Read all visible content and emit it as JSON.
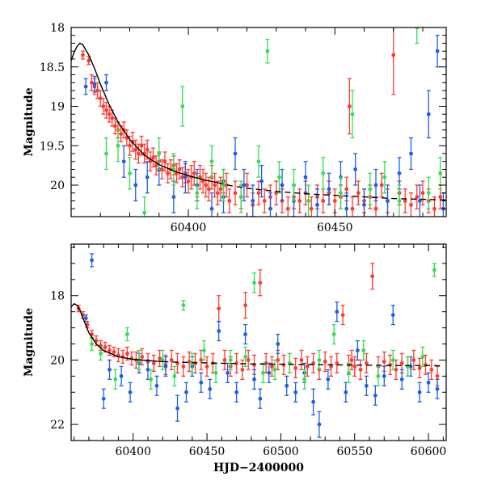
{
  "chart_data": [
    {
      "type": "scatter",
      "title": "",
      "xlabel": "",
      "ylabel": "Magnitude",
      "xlim": [
        60360,
        60488
      ],
      "ylim": [
        20.4,
        18.0
      ],
      "y_inverted": true,
      "xticks": [
        60400,
        60450
      ],
      "yticks": [
        18,
        18.5,
        19,
        19.5,
        20
      ],
      "ytick_labels": [
        "18",
        "18.5",
        "19",
        "19.5",
        "20"
      ],
      "grid": false,
      "model_curve": {
        "x": [
          60360,
          60361,
          60362,
          60363,
          60364,
          60366,
          60368,
          60370,
          60373,
          60376,
          60380,
          60385,
          60390,
          60395,
          60400,
          60405,
          60410,
          60415,
          60420,
          60430,
          60440,
          60450,
          60460,
          60470,
          60480,
          60488
        ],
        "y": [
          18.42,
          18.32,
          18.24,
          18.2,
          18.22,
          18.35,
          18.52,
          18.72,
          18.98,
          19.2,
          19.42,
          19.62,
          19.74,
          19.82,
          19.88,
          19.93,
          19.97,
          20.01,
          20.04,
          20.08,
          20.11,
          20.13,
          20.15,
          20.17,
          20.18,
          20.19
        ],
        "dashed_from_x": 60410
      },
      "series": [
        {
          "color": "#ff3b2f",
          "x": [
            60364,
            60366,
            60367,
            60368,
            60369,
            60370,
            60371,
            60372,
            60373,
            60374,
            60375,
            60376,
            60377,
            60378,
            60379,
            60380,
            60381,
            60382,
            60383,
            60384,
            60385,
            60386,
            60387,
            60388,
            60389,
            60390,
            60391,
            60392,
            60393,
            60394,
            60395,
            60396,
            60397,
            60398,
            60399,
            60400,
            60401,
            60402,
            60403,
            60404,
            60405,
            60406,
            60407,
            60408,
            60409,
            60410,
            60411,
            60412,
            60413,
            60414,
            60416,
            60418,
            60420,
            60422,
            60424,
            60426,
            60428,
            60430,
            60432,
            60434,
            60436,
            60438,
            60440,
            60442,
            60444,
            60446,
            60448,
            60450,
            60452,
            60454,
            60455,
            60456,
            60458,
            60460,
            60462,
            60464,
            60466,
            60468,
            60470,
            60472,
            60474,
            60476,
            60478,
            60480,
            60482,
            60484,
            60486
          ],
          "y": [
            18.35,
            18.42,
            18.7,
            18.75,
            18.8,
            18.9,
            19.0,
            19.05,
            19.1,
            19.15,
            19.25,
            19.3,
            19.35,
            19.3,
            19.4,
            19.5,
            19.45,
            19.55,
            19.6,
            19.5,
            19.6,
            19.55,
            19.7,
            19.65,
            19.75,
            19.7,
            19.8,
            19.7,
            19.85,
            19.8,
            19.75,
            19.85,
            19.8,
            19.9,
            19.85,
            19.95,
            19.9,
            19.85,
            20.0,
            19.9,
            19.95,
            20.0,
            20.05,
            19.9,
            20.0,
            20.1,
            20.05,
            19.95,
            20.0,
            20.2,
            20.1,
            20.15,
            20.0,
            20.25,
            20.1,
            20.2,
            20.15,
            20.1,
            20.2,
            20.3,
            20.15,
            20.2,
            20.1,
            20.3,
            20.15,
            20.2,
            20.1,
            20.2,
            20.15,
            20.05,
            19.0,
            20.3,
            20.1,
            20.2,
            20.15,
            20.3,
            20.0,
            20.2,
            18.35,
            20.1,
            20.2,
            20.25,
            20.15,
            20.1,
            20.2,
            20.3,
            20.15
          ],
          "err": [
            0.05,
            0.05,
            0.1,
            0.1,
            0.1,
            0.1,
            0.1,
            0.1,
            0.1,
            0.1,
            0.1,
            0.1,
            0.1,
            0.1,
            0.1,
            0.12,
            0.12,
            0.12,
            0.12,
            0.12,
            0.12,
            0.12,
            0.12,
            0.12,
            0.12,
            0.12,
            0.12,
            0.12,
            0.12,
            0.12,
            0.12,
            0.12,
            0.12,
            0.12,
            0.12,
            0.15,
            0.15,
            0.15,
            0.15,
            0.15,
            0.15,
            0.15,
            0.15,
            0.15,
            0.15,
            0.15,
            0.15,
            0.15,
            0.15,
            0.15,
            0.15,
            0.15,
            0.15,
            0.15,
            0.15,
            0.15,
            0.15,
            0.15,
            0.15,
            0.15,
            0.15,
            0.15,
            0.15,
            0.15,
            0.15,
            0.15,
            0.15,
            0.15,
            0.15,
            0.15,
            0.35,
            0.15,
            0.15,
            0.15,
            0.15,
            0.15,
            0.15,
            0.15,
            0.5,
            0.15,
            0.15,
            0.15,
            0.15,
            0.15,
            0.15,
            0.15,
            0.15
          ]
        },
        {
          "color": "#1f5fe0",
          "x": [
            60365,
            60368,
            60372,
            60378,
            60382,
            60386,
            60390,
            60395,
            60399,
            60403,
            60408,
            60412,
            60416,
            60419,
            60422,
            60425,
            60428,
            60432,
            60436,
            60440,
            60444,
            60448,
            60452,
            60454,
            60457,
            60460,
            60464,
            60468,
            60472,
            60476,
            60479,
            60482,
            60485,
            60487
          ],
          "y": [
            18.75,
            18.72,
            18.7,
            19.7,
            20.0,
            19.9,
            19.8,
            20.15,
            19.9,
            20.0,
            20.3,
            20.15,
            19.6,
            20.0,
            20.2,
            19.95,
            20.3,
            20.0,
            20.2,
            19.9,
            20.25,
            20.05,
            19.9,
            20.3,
            19.8,
            20.25,
            20.0,
            20.2,
            19.85,
            19.6,
            20.2,
            19.1,
            18.3,
            20.3
          ],
          "err": [
            0.1,
            0.1,
            0.1,
            0.2,
            0.2,
            0.2,
            0.2,
            0.2,
            0.2,
            0.2,
            0.2,
            0.2,
            0.2,
            0.2,
            0.2,
            0.2,
            0.2,
            0.2,
            0.2,
            0.2,
            0.2,
            0.2,
            0.2,
            0.2,
            0.2,
            0.2,
            0.2,
            0.2,
            0.2,
            0.2,
            0.2,
            0.3,
            0.2,
            0.2
          ]
        },
        {
          "color": "#33dd55",
          "x": [
            60372,
            60376,
            60380,
            60385,
            60390,
            60395,
            60398,
            60403,
            60408,
            60412,
            60418,
            60424,
            60427,
            60431,
            60436,
            60441,
            60446,
            60452,
            60456,
            60462,
            60467,
            60472,
            60478,
            60482,
            60486
          ],
          "y": [
            19.6,
            19.5,
            19.85,
            20.35,
            19.6,
            19.8,
            19.0,
            20.1,
            19.7,
            20.0,
            20.15,
            19.7,
            18.3,
            19.9,
            20.0,
            20.2,
            19.85,
            20.1,
            19.1,
            20.05,
            19.9,
            20.2,
            18.0,
            20.1,
            19.85
          ],
          "err": [
            0.2,
            0.2,
            0.2,
            0.2,
            0.2,
            0.2,
            0.25,
            0.2,
            0.2,
            0.2,
            0.2,
            0.2,
            0.15,
            0.2,
            0.2,
            0.2,
            0.2,
            0.2,
            0.3,
            0.2,
            0.2,
            0.2,
            0.2,
            0.2,
            0.2
          ]
        }
      ]
    },
    {
      "type": "scatter",
      "title": "",
      "xlabel": "HJD−2400000",
      "ylabel": "Magnitude",
      "xlim": [
        60358,
        60612
      ],
      "ylim": [
        22.5,
        16.4
      ],
      "y_inverted": true,
      "xticks": [
        60400,
        60450,
        60500,
        60550,
        60600
      ],
      "yticks": [
        18,
        20,
        22
      ],
      "ytick_labels": [
        "18",
        "20",
        "22"
      ],
      "grid": false,
      "model_curve": {
        "x": [
          60358,
          60360,
          60362,
          60364,
          60366,
          60370,
          60375,
          60380,
          60390,
          60400,
          60420,
          60440,
          60460,
          60480,
          60500,
          60520,
          60540,
          60560,
          60580,
          60600,
          60610
        ],
        "y": [
          18.35,
          18.25,
          18.3,
          18.45,
          18.7,
          19.15,
          19.5,
          19.7,
          19.9,
          19.98,
          20.05,
          20.08,
          20.1,
          20.12,
          20.13,
          20.14,
          20.15,
          20.16,
          20.17,
          20.17,
          20.18
        ],
        "dashed_from_x": 60420
      },
      "series": [
        {
          "color": "#ff3b2f",
          "x": [
            60363,
            60366,
            60369,
            60372,
            60375,
            60378,
            60381,
            60384,
            60387,
            60390,
            60393,
            60396,
            60399,
            60402,
            60406,
            60410,
            60414,
            60418,
            60422,
            60426,
            60430,
            60434,
            60438,
            60442,
            60446,
            60450,
            60454,
            60458,
            60462,
            60466,
            60470,
            60474,
            60476,
            60478,
            60482,
            60486,
            60490,
            60494,
            60498,
            60502,
            60506,
            60510,
            60514,
            60518,
            60522,
            60526,
            60530,
            60534,
            60538,
            60542,
            60546,
            60548,
            60550,
            60554,
            60558,
            60562,
            60566,
            60570,
            60574,
            60578,
            60582,
            60586,
            60590,
            60594,
            60598,
            60602,
            60606
          ],
          "y": [
            18.4,
            18.6,
            18.9,
            19.2,
            19.4,
            19.55,
            19.6,
            19.7,
            19.75,
            19.85,
            19.9,
            19.8,
            19.95,
            20.0,
            19.9,
            20.05,
            20.1,
            19.95,
            20.15,
            20.0,
            20.1,
            20.2,
            20.05,
            20.1,
            20.0,
            20.2,
            20.1,
            18.4,
            20.0,
            20.2,
            20.1,
            20.3,
            18.3,
            20.0,
            20.15,
            17.6,
            20.1,
            20.2,
            20.0,
            20.15,
            20.1,
            20.25,
            20.0,
            20.2,
            20.1,
            20.3,
            20.05,
            20.2,
            20.1,
            18.6,
            20.15,
            20.0,
            20.2,
            20.3,
            20.1,
            17.4,
            20.2,
            20.05,
            20.15,
            20.3,
            20.1,
            20.2,
            20.0,
            20.25,
            20.15,
            20.3,
            20.5
          ],
          "err": [
            0.1,
            0.1,
            0.1,
            0.12,
            0.15,
            0.15,
            0.15,
            0.15,
            0.15,
            0.2,
            0.2,
            0.2,
            0.2,
            0.25,
            0.25,
            0.25,
            0.25,
            0.25,
            0.3,
            0.3,
            0.3,
            0.3,
            0.3,
            0.3,
            0.3,
            0.3,
            0.3,
            0.4,
            0.3,
            0.3,
            0.3,
            0.3,
            0.4,
            0.3,
            0.3,
            0.4,
            0.3,
            0.3,
            0.3,
            0.3,
            0.3,
            0.3,
            0.3,
            0.3,
            0.3,
            0.3,
            0.3,
            0.3,
            0.3,
            0.3,
            0.3,
            0.3,
            0.3,
            0.3,
            0.3,
            0.4,
            0.3,
            0.3,
            0.3,
            0.3,
            0.3,
            0.3,
            0.3,
            0.3,
            0.3,
            0.3,
            0.3
          ]
        },
        {
          "color": "#1f5fe0",
          "x": [
            60368,
            60372,
            60380,
            60384,
            60392,
            60398,
            60404,
            60410,
            60416,
            60422,
            60430,
            60436,
            60440,
            60446,
            60452,
            60458,
            60464,
            60470,
            60476,
            60482,
            60486,
            60492,
            60498,
            60504,
            60510,
            60516,
            60522,
            60526,
            60532,
            60538,
            60544,
            60552,
            60558,
            60564,
            60570,
            60576,
            60582,
            60588,
            60594,
            60600,
            60606
          ],
          "y": [
            18.7,
            16.9,
            21.2,
            20.3,
            20.5,
            21.0,
            20.1,
            20.3,
            20.8,
            20.2,
            21.5,
            21.0,
            20.2,
            20.7,
            20.9,
            19.1,
            20.4,
            21.0,
            19.2,
            20.6,
            21.2,
            20.4,
            19.5,
            20.8,
            21.0,
            20.4,
            21.3,
            22.0,
            20.6,
            18.5,
            21.0,
            19.7,
            20.8,
            21.1,
            20.5,
            18.6,
            20.6,
            20.2,
            21.0,
            20.7,
            20.9
          ],
          "err": [
            0.1,
            0.2,
            0.3,
            0.3,
            0.3,
            0.3,
            0.3,
            0.3,
            0.3,
            0.3,
            0.4,
            0.3,
            0.3,
            0.3,
            0.3,
            0.3,
            0.3,
            0.3,
            0.3,
            0.3,
            0.3,
            0.3,
            0.3,
            0.3,
            0.3,
            0.3,
            0.4,
            0.4,
            0.3,
            0.3,
            0.3,
            0.3,
            0.3,
            0.3,
            0.3,
            0.3,
            0.3,
            0.3,
            0.3,
            0.3,
            0.3
          ]
        },
        {
          "color": "#33dd55",
          "x": [
            60372,
            60378,
            60388,
            60396,
            60404,
            60412,
            60420,
            60428,
            60434,
            60440,
            60448,
            60456,
            60466,
            60476,
            60482,
            60488,
            60496,
            60506,
            60516,
            60526,
            60536,
            60546,
            60556,
            60566,
            60576,
            60586,
            60596,
            60604
          ],
          "y": [
            19.5,
            19.8,
            20.6,
            19.2,
            20.0,
            20.6,
            20.0,
            20.5,
            18.3,
            20.1,
            19.7,
            20.4,
            20.0,
            19.9,
            17.6,
            20.4,
            20.3,
            20.1,
            20.6,
            20.0,
            19.2,
            20.4,
            19.7,
            20.5,
            20.0,
            20.2,
            19.9,
            17.2
          ],
          "err": [
            0.2,
            0.2,
            0.3,
            0.2,
            0.3,
            0.3,
            0.3,
            0.3,
            0.15,
            0.3,
            0.3,
            0.3,
            0.3,
            0.3,
            0.3,
            0.3,
            0.3,
            0.3,
            0.3,
            0.3,
            0.3,
            0.3,
            0.3,
            0.3,
            0.3,
            0.3,
            0.3,
            0.2
          ]
        }
      ]
    }
  ]
}
